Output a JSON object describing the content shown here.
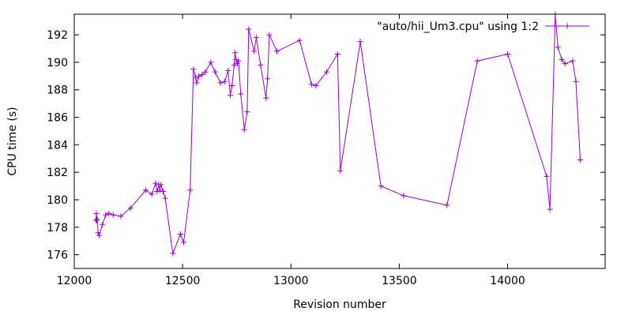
{
  "chart_data": {
    "type": "line",
    "xlabel": "Revision number",
    "ylabel": "CPU time (s)",
    "xlim": [
      12000,
      14450
    ],
    "ylim": [
      175,
      193.5
    ],
    "xticks": [
      12000,
      12500,
      13000,
      13500,
      14000
    ],
    "yticks": [
      176,
      178,
      180,
      182,
      184,
      186,
      188,
      190,
      192
    ],
    "xtick_labels": [
      "12000",
      "12500",
      "13000",
      "13500",
      "14000"
    ],
    "ytick_labels": [
      "176",
      "178",
      "180",
      "182",
      "184",
      "186",
      "188",
      "190",
      "192"
    ],
    "legend_position": "top-right",
    "series": [
      {
        "name": "\"auto/hii_Um3.cpu\" using 1:2",
        "color": "#9400d3",
        "x": [
          12100,
          12102,
          12104,
          12106,
          12110,
          12115,
          12130,
          12145,
          12160,
          12180,
          12215,
          12260,
          12330,
          12358,
          12375,
          12382,
          12390,
          12395,
          12400,
          12410,
          12420,
          12455,
          12490,
          12505,
          12535,
          12550,
          12560,
          12565,
          12575,
          12590,
          12605,
          12630,
          12650,
          12675,
          12695,
          12710,
          12720,
          12728,
          12738,
          12742,
          12747,
          12752,
          12758,
          12768,
          12785,
          12798,
          12805,
          12830,
          12840,
          12860,
          12885,
          12892,
          12900,
          12935,
          13040,
          13095,
          13115,
          13165,
          13215,
          13228,
          13320,
          13415,
          13520,
          13720,
          13860,
          14000,
          14180,
          14195,
          14220,
          14232,
          14250,
          14265,
          14300,
          14315,
          14335
        ],
        "y": [
          178.5,
          179.0,
          178.5,
          178.6,
          177.6,
          177.4,
          178.2,
          178.9,
          179.0,
          178.9,
          178.8,
          179.4,
          180.7,
          180.4,
          181.2,
          180.6,
          181.1,
          180.7,
          181.1,
          180.6,
          180.1,
          176.1,
          177.5,
          176.9,
          180.7,
          189.5,
          188.9,
          188.5,
          189.0,
          189.1,
          189.3,
          190.0,
          189.3,
          188.5,
          188.6,
          189.4,
          187.6,
          188.3,
          189.8,
          190.7,
          190.2,
          189.9,
          190.1,
          187.7,
          185.1,
          186.4,
          192.4,
          190.8,
          191.8,
          189.8,
          187.4,
          188.8,
          192.0,
          190.8,
          191.6,
          188.4,
          188.3,
          189.3,
          190.6,
          182.1,
          191.5,
          181.0,
          180.3,
          179.6,
          190.1,
          190.6,
          181.7,
          179.3,
          193.5,
          191.1,
          190.2,
          189.9,
          190.1,
          188.6,
          182.9
        ]
      }
    ]
  }
}
